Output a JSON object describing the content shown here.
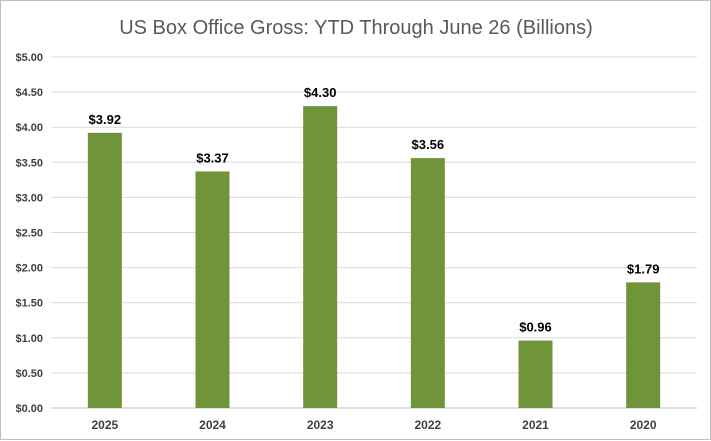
{
  "chart_data": {
    "type": "bar",
    "title": "US Box Office Gross: YTD Through June 26 (Billions)",
    "xlabel": "",
    "ylabel": "",
    "categories": [
      "2025",
      "2024",
      "2023",
      "2022",
      "2021",
      "2020"
    ],
    "values": [
      3.92,
      3.37,
      4.3,
      3.56,
      0.96,
      1.79
    ],
    "value_labels": [
      "$3.92",
      "$3.37",
      "$4.30",
      "$3.56",
      "$0.96",
      "$1.79"
    ],
    "ylim": [
      0,
      5
    ],
    "yticks": [
      0,
      0.5,
      1,
      1.5,
      2,
      2.5,
      3,
      3.5,
      4,
      4.5,
      5
    ],
    "ytick_labels": [
      "$0.00",
      "$0.50",
      "$1.00",
      "$1.50",
      "$2.00",
      "$2.50",
      "$3.00",
      "$3.50",
      "$4.00",
      "$4.50",
      "$5.00"
    ],
    "grid": true,
    "legend": "none"
  },
  "colors": {
    "bar": "#70943a",
    "grid": "#d9d9d9",
    "axis": "#bfbfbf"
  }
}
